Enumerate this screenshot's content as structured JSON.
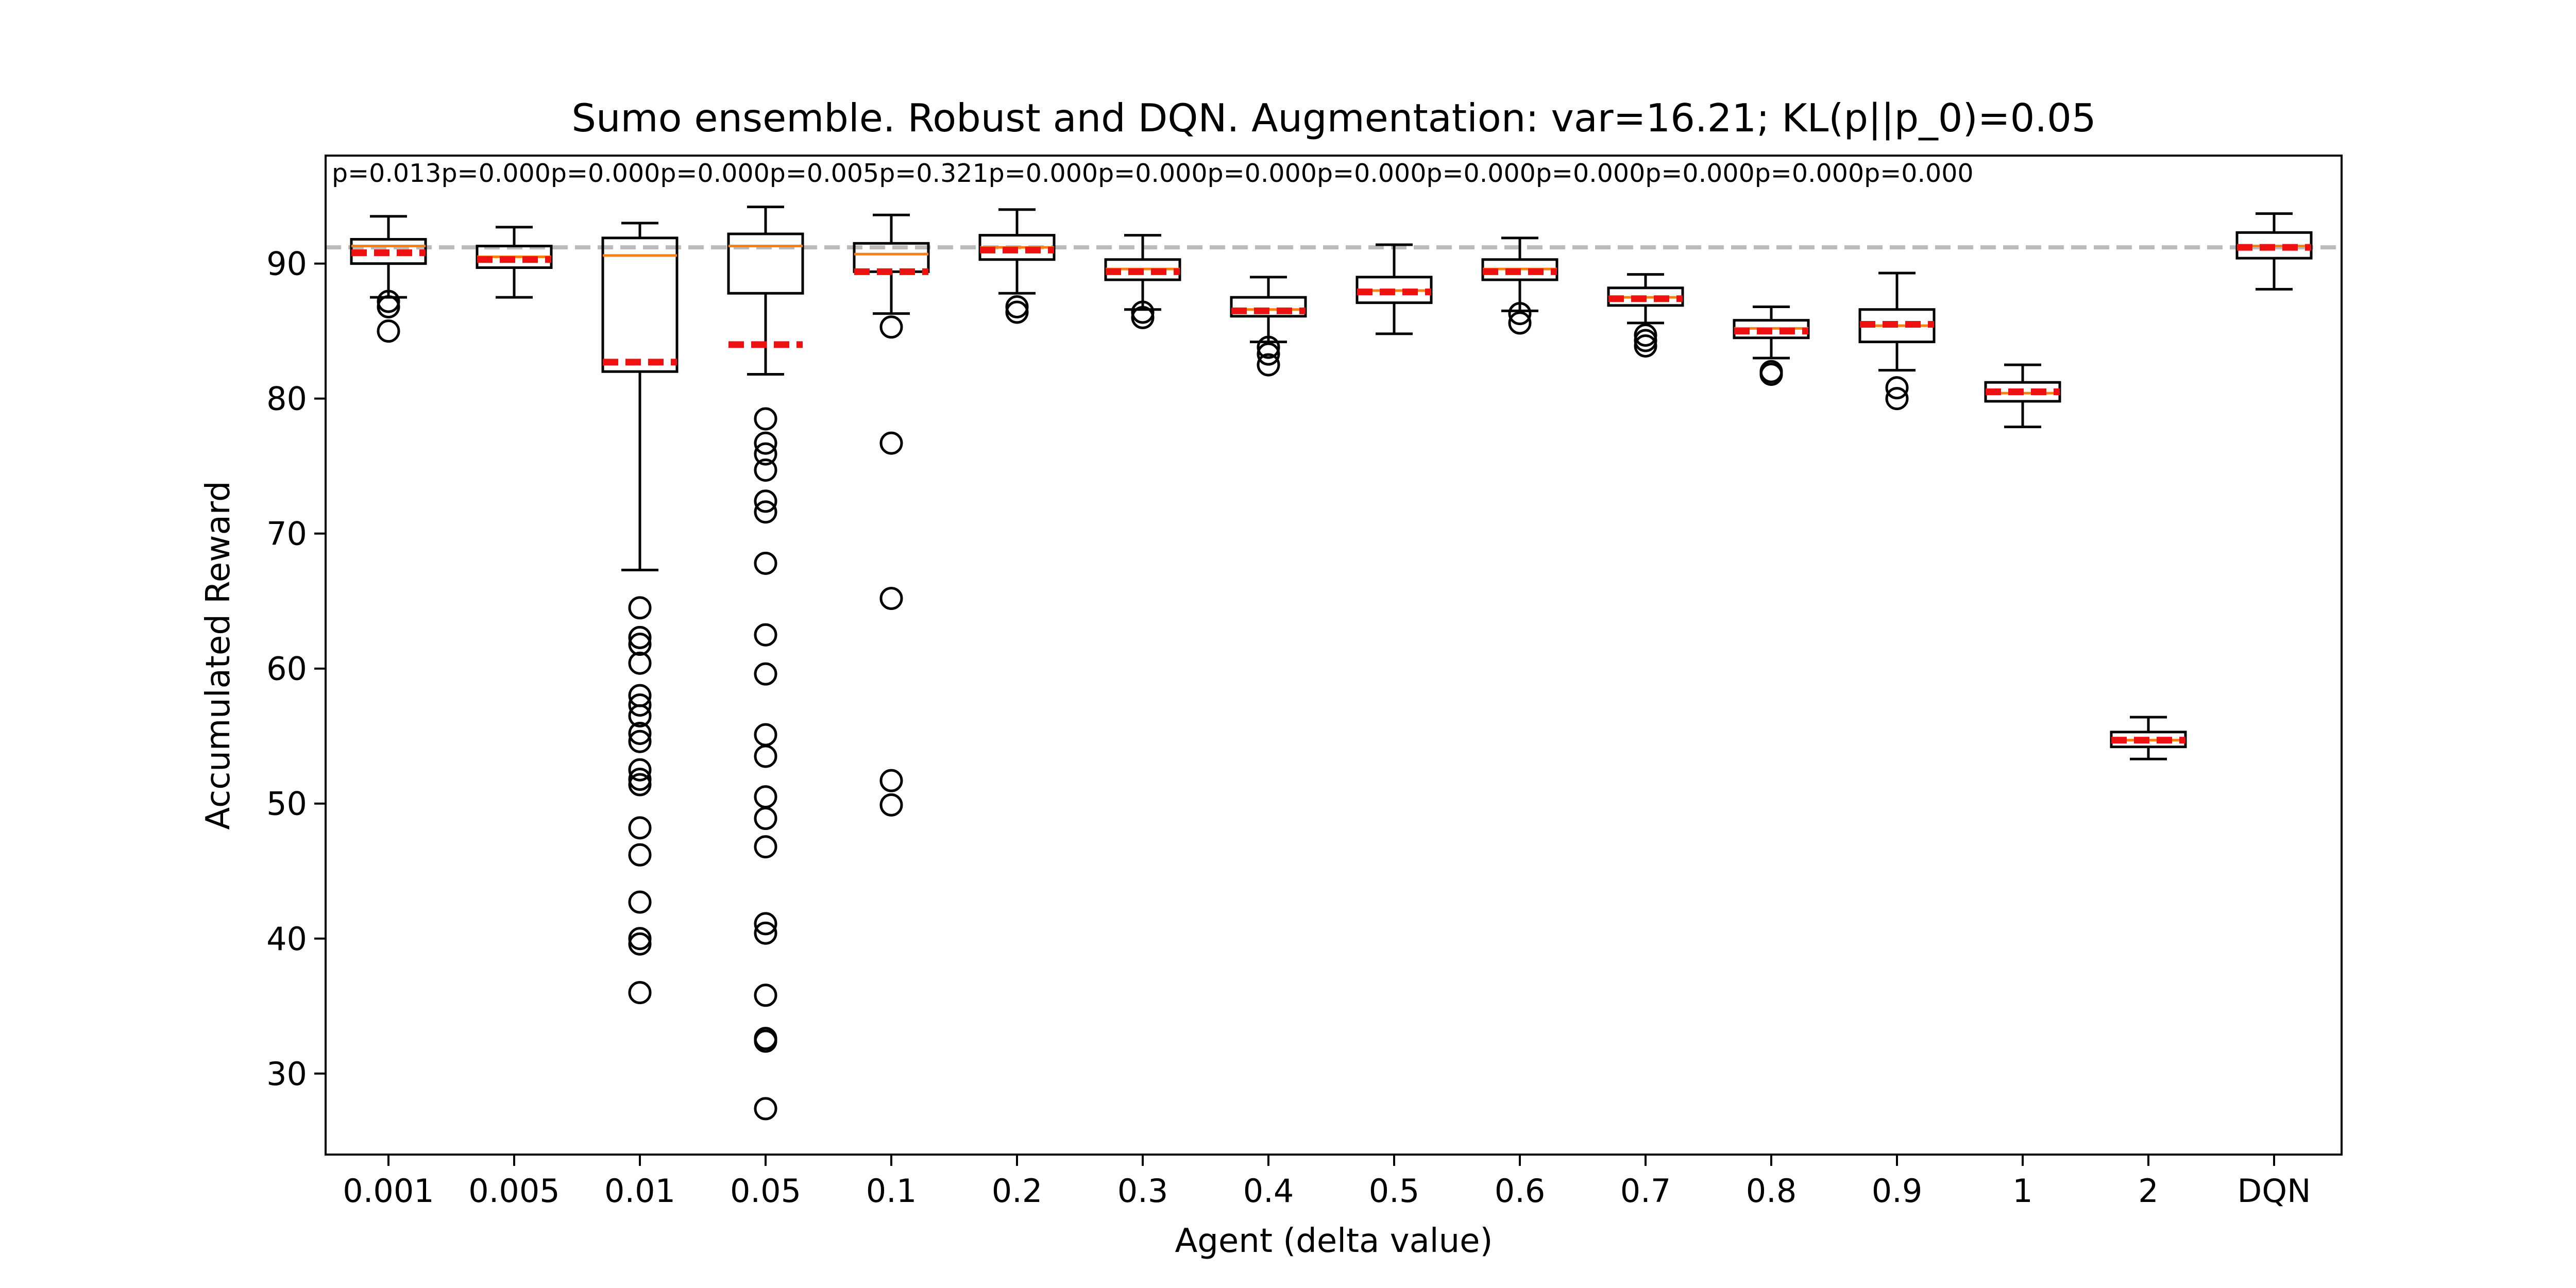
{
  "chart_data": {
    "type": "box",
    "title": "Sumo ensemble. Robust and DQN. Augmentation: var=16.21; KL(p||p_0)=0.05",
    "xlabel": "Agent (delta value)",
    "ylabel": "Accumulated Reward",
    "ylim": [
      24,
      98
    ],
    "yticks": [
      30,
      40,
      50,
      60,
      70,
      80,
      90
    ],
    "reference_line": 91.2,
    "colors": {
      "median": "#ff7f0e",
      "mean": "#ee1111",
      "reference": "#bbbbbb",
      "box": "#000000"
    },
    "categories": [
      "0.001",
      "0.005",
      "0.01",
      "0.05",
      "0.1",
      "0.2",
      "0.3",
      "0.4",
      "0.5",
      "0.6",
      "0.7",
      "0.8",
      "0.9",
      "1",
      "2",
      "DQN"
    ],
    "p_values": [
      "p=0.013",
      "p=0.000",
      "p=0.000",
      "p=0.000",
      "p=0.005",
      "p=0.321",
      "p=0.000",
      "p=0.000",
      "p=0.000",
      "p=0.000",
      "p=0.000",
      "p=0.000",
      "p=0.000",
      "p=0.000",
      "p=0.000"
    ],
    "boxes": [
      {
        "label": "0.001",
        "whisker_low": 87.5,
        "q1": 90.0,
        "median": 91.3,
        "q3": 91.8,
        "whisker_high": 93.5,
        "mean": 90.8,
        "outliers": [
          87.2,
          86.8,
          85.0
        ]
      },
      {
        "label": "0.005",
        "whisker_low": 87.5,
        "q1": 89.7,
        "median": 90.5,
        "q3": 91.3,
        "whisker_high": 92.7,
        "mean": 90.3,
        "outliers": []
      },
      {
        "label": "0.01",
        "whisker_low": 67.3,
        "q1": 82.0,
        "median": 90.6,
        "q3": 91.9,
        "whisker_high": 93.0,
        "mean": 82.7,
        "outliers": [
          64.5,
          62.3,
          61.8,
          60.4,
          58.0,
          57.3,
          56.5,
          55.2,
          54.6,
          52.5,
          51.8,
          51.4,
          48.2,
          46.2,
          42.7,
          40.0,
          39.6,
          36.0
        ]
      },
      {
        "label": "0.05",
        "whisker_low": 81.8,
        "q1": 87.8,
        "median": 91.3,
        "q3": 92.2,
        "whisker_high": 94.2,
        "mean": 84.0,
        "outliers": [
          78.5,
          76.7,
          75.9,
          74.7,
          72.4,
          71.6,
          67.8,
          62.5,
          59.6,
          55.1,
          53.5,
          50.5,
          48.9,
          46.8,
          41.1,
          40.4,
          35.8,
          32.6,
          32.4,
          27.4
        ]
      },
      {
        "label": "0.1",
        "whisker_low": 86.3,
        "q1": 89.4,
        "median": 90.7,
        "q3": 91.5,
        "whisker_high": 93.6,
        "mean": 89.4,
        "outliers": [
          85.3,
          76.7,
          65.2,
          51.7,
          49.9
        ]
      },
      {
        "label": "0.2",
        "whisker_low": 87.8,
        "q1": 90.3,
        "median": 91.2,
        "q3": 92.1,
        "whisker_high": 94.0,
        "mean": 91.0,
        "outliers": [
          86.8,
          86.4
        ]
      },
      {
        "label": "0.3",
        "whisker_low": 86.6,
        "q1": 88.8,
        "median": 89.6,
        "q3": 90.3,
        "whisker_high": 92.1,
        "mean": 89.4,
        "outliers": [
          86.4,
          86.0
        ]
      },
      {
        "label": "0.4",
        "whisker_low": 84.2,
        "q1": 86.1,
        "median": 86.6,
        "q3": 87.5,
        "whisker_high": 89.0,
        "mean": 86.5,
        "outliers": [
          83.8,
          83.3,
          82.5
        ]
      },
      {
        "label": "0.5",
        "whisker_low": 84.8,
        "q1": 87.1,
        "median": 88.0,
        "q3": 89.0,
        "whisker_high": 91.4,
        "mean": 87.9,
        "outliers": []
      },
      {
        "label": "0.6",
        "whisker_low": 86.5,
        "q1": 88.8,
        "median": 89.6,
        "q3": 90.3,
        "whisker_high": 91.9,
        "mean": 89.4,
        "outliers": [
          86.3,
          85.6
        ]
      },
      {
        "label": "0.7",
        "whisker_low": 85.6,
        "q1": 86.9,
        "median": 87.5,
        "q3": 88.2,
        "whisker_high": 89.2,
        "mean": 87.4,
        "outliers": [
          84.7,
          84.3,
          83.9
        ]
      },
      {
        "label": "0.8",
        "whisker_low": 83.0,
        "q1": 84.5,
        "median": 85.2,
        "q3": 85.8,
        "whisker_high": 86.8,
        "mean": 85.0,
        "outliers": [
          82.0,
          81.8
        ]
      },
      {
        "label": "0.9",
        "whisker_low": 82.1,
        "q1": 84.2,
        "median": 85.4,
        "q3": 86.6,
        "whisker_high": 89.3,
        "mean": 85.5,
        "outliers": [
          80.8,
          80.0
        ]
      },
      {
        "label": "1",
        "whisker_low": 77.9,
        "q1": 79.8,
        "median": 80.4,
        "q3": 81.2,
        "whisker_high": 82.5,
        "mean": 80.5,
        "outliers": []
      },
      {
        "label": "2",
        "whisker_low": 53.3,
        "q1": 54.2,
        "median": 54.7,
        "q3": 55.3,
        "whisker_high": 56.4,
        "mean": 54.7,
        "outliers": []
      },
      {
        "label": "DQN",
        "whisker_low": 88.1,
        "q1": 90.4,
        "median": 91.3,
        "q3": 92.3,
        "whisker_high": 93.7,
        "mean": 91.2,
        "outliers": []
      }
    ]
  }
}
